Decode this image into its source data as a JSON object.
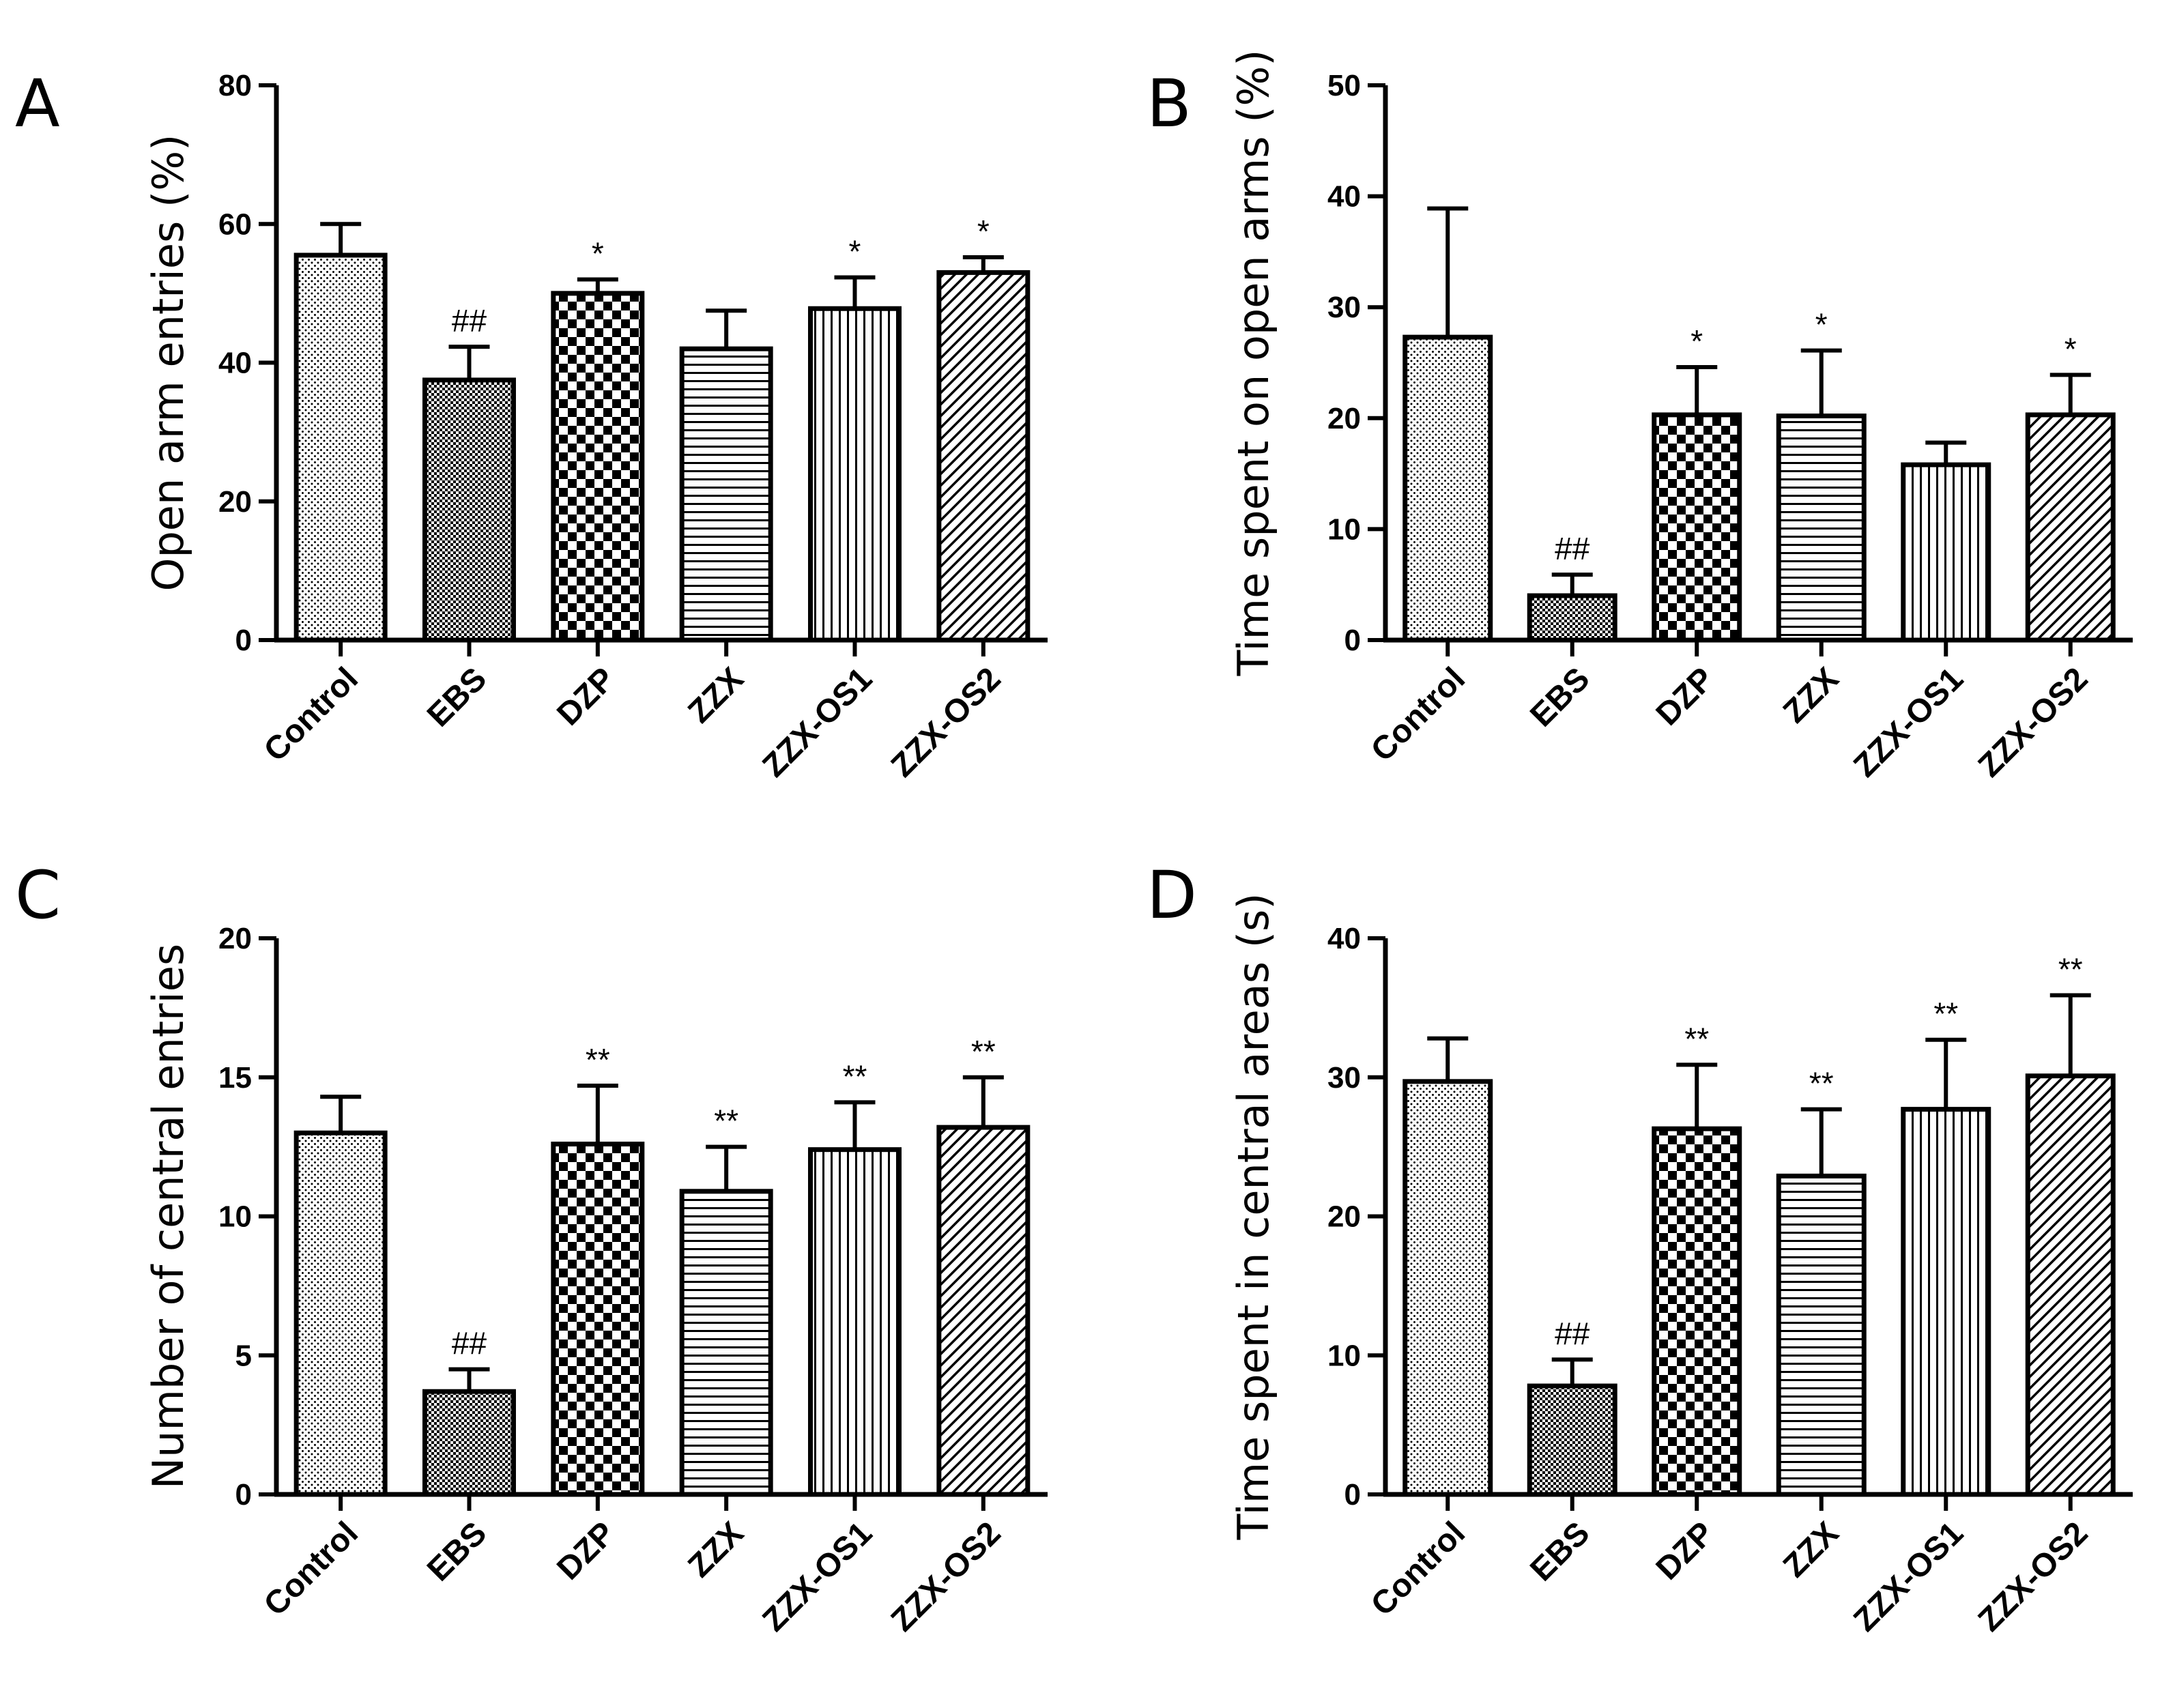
{
  "chart_data": [
    {
      "type": "bar",
      "panel": "A",
      "ylabel": "Open arm entries (%)",
      "ylim": [
        0,
        80
      ],
      "yticks": [
        0,
        20,
        40,
        60,
        80
      ],
      "categories": [
        "Control",
        "EBS",
        "DZP",
        "ZZX",
        "ZZX-OS1",
        "ZZX-OS2"
      ],
      "values": [
        55.5,
        37.5,
        50,
        42,
        47.8,
        53
      ],
      "errors": [
        4.5,
        4.8,
        2,
        5.5,
        4.5,
        2.2
      ],
      "annotations": [
        "",
        "##",
        "*",
        "",
        "*",
        "*"
      ]
    },
    {
      "type": "bar",
      "panel": "B",
      "ylabel": "Time spent on open arms (%)",
      "ylim": [
        0,
        50
      ],
      "yticks": [
        0,
        10,
        20,
        30,
        40,
        50
      ],
      "categories": [
        "Control",
        "EBS",
        "DZP",
        "ZZX",
        "ZZX-OS1",
        "ZZX-OS2"
      ],
      "values": [
        27.3,
        4,
        20.3,
        20.2,
        15.8,
        20.3
      ],
      "errors": [
        11.6,
        1.9,
        4.3,
        5.9,
        2,
        3.6
      ],
      "annotations": [
        "",
        "##",
        "*",
        "*",
        "",
        "*"
      ]
    },
    {
      "type": "bar",
      "panel": "C",
      "ylabel": "Number of central entries",
      "ylim": [
        0,
        20
      ],
      "yticks": [
        0,
        5,
        10,
        15,
        20
      ],
      "categories": [
        "Control",
        "EBS",
        "DZP",
        "ZZX",
        "ZZX-OS1",
        "ZZX-OS2"
      ],
      "values": [
        13,
        3.7,
        12.6,
        10.9,
        12.4,
        13.2
      ],
      "errors": [
        1.3,
        0.8,
        2.1,
        1.6,
        1.7,
        1.8
      ],
      "annotations": [
        "",
        "##",
        "**",
        "**",
        "**",
        "**"
      ]
    },
    {
      "type": "bar",
      "panel": "D",
      "ylabel": "Time spent in central areas (s)",
      "ylim": [
        0,
        40
      ],
      "yticks": [
        0,
        10,
        20,
        30,
        40
      ],
      "categories": [
        "Control",
        "EBS",
        "DZP",
        "ZZX",
        "ZZX-OS1",
        "ZZX-OS2"
      ],
      "values": [
        29.7,
        7.8,
        26.3,
        22.9,
        27.7,
        30.1
      ],
      "errors": [
        3.1,
        1.9,
        4.6,
        4.8,
        5,
        5.8
      ],
      "annotations": [
        "",
        "##",
        "**",
        "**",
        "**",
        "**"
      ]
    }
  ]
}
